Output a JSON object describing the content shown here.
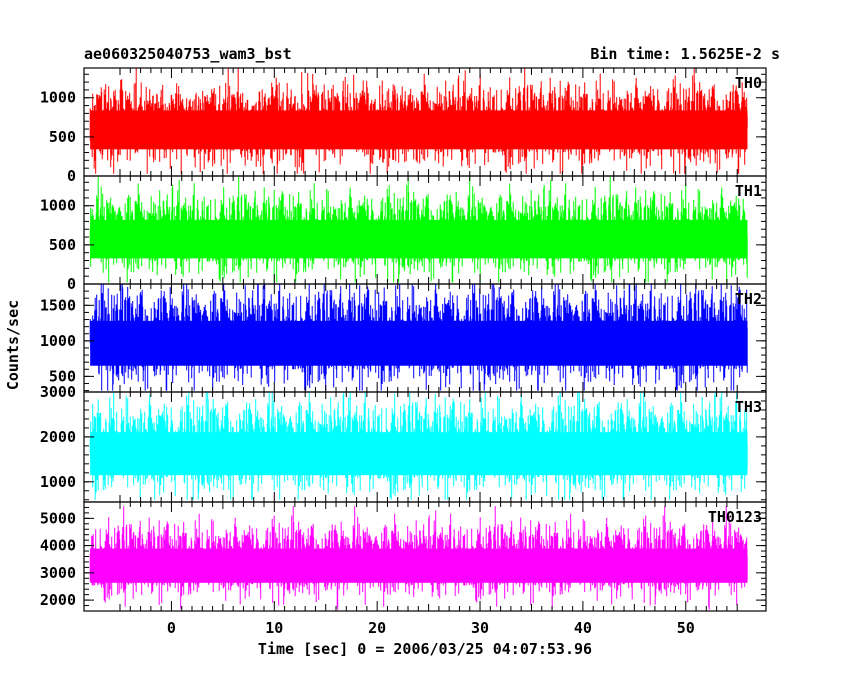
{
  "title": "ae060325040753_wam3_bst",
  "bin_time": "Bin time: 1.5625E-2 s",
  "chart_data": {
    "type": "line",
    "title": "ae060325040753_wam3_bst",
    "xlabel": "Time [sec] 0 = 2006/03/25 04:07:53.96",
    "ylabel": "Counts/sec",
    "xlim": [
      -8.5,
      57.8
    ],
    "x_data_range": [
      -7.9,
      56.0
    ],
    "x_ticks": [
      0,
      10,
      20,
      30,
      40,
      50
    ],
    "x_tick_labels": [
      "0",
      "10",
      "20",
      "30",
      "40",
      "50"
    ],
    "grid": false,
    "series": [
      {
        "name": "TH0",
        "color": "#ff0000",
        "ylim": [
          0,
          1380
        ],
        "yticks": [
          0,
          500,
          1000
        ],
        "ytick_labels": [
          "0",
          "500",
          "1000"
        ],
        "mean": 640,
        "low_typical": 180,
        "high_typical": 1080,
        "min": 30,
        "max": 1380
      },
      {
        "name": "TH1",
        "color": "#00ff00",
        "ylim": [
          0,
          1380
        ],
        "yticks": [
          0,
          500,
          1000
        ],
        "ytick_labels": [
          "0",
          "500",
          "1000"
        ],
        "mean": 620,
        "low_typical": 170,
        "high_typical": 1060,
        "min": 20,
        "max": 1370
      },
      {
        "name": "TH2",
        "color": "#0000ff",
        "ylim": [
          280,
          1800
        ],
        "yticks": [
          500,
          1000,
          1500
        ],
        "ytick_labels": [
          "500",
          "1000",
          "1500"
        ],
        "mean": 1020,
        "low_typical": 450,
        "high_typical": 1600,
        "min": 300,
        "max": 1800
      },
      {
        "name": "TH3",
        "color": "#00ffff",
        "ylim": [
          550,
          3000
        ],
        "yticks": [
          1000,
          2000,
          3000
        ],
        "ytick_labels": [
          "1000",
          "2000",
          "3000"
        ],
        "mean": 1700,
        "low_typical": 850,
        "high_typical": 2600,
        "min": 600,
        "max": 3000
      },
      {
        "name": "TH0123",
        "color": "#ff00ff",
        "ylim": [
          1600,
          5600
        ],
        "yticks": [
          2000,
          3000,
          4000,
          5000
        ],
        "ytick_labels": [
          "2000",
          "3000",
          "4000",
          "5000"
        ],
        "mean": 3350,
        "low_typical": 2250,
        "high_typical": 4550,
        "min": 1650,
        "max": 5450
      }
    ]
  }
}
